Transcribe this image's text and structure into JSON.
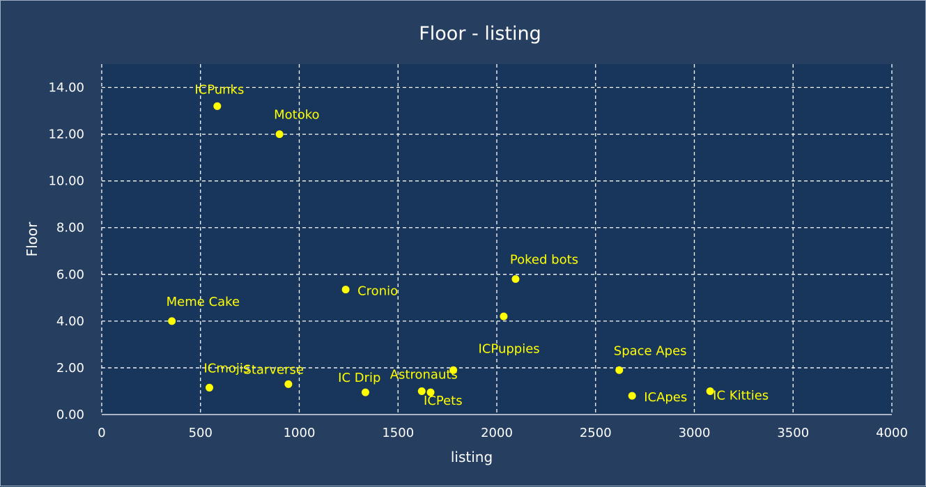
{
  "chart_data": {
    "type": "scatter",
    "title": "Floor - listing",
    "xlabel": "listing",
    "ylabel": "Floor",
    "xlim": [
      0,
      4000
    ],
    "ylim": [
      0,
      15
    ],
    "xticks": [
      0,
      500,
      1000,
      1500,
      2000,
      2500,
      3000,
      3500,
      4000
    ],
    "yticks": [
      0,
      2,
      4,
      6,
      8,
      10,
      12,
      14
    ],
    "ytick_format": "fixed2",
    "grid": true,
    "legend": "none",
    "points": [
      {
        "label": "ICPunks",
        "x": 585,
        "y": 13.2,
        "label_pos": "top"
      },
      {
        "label": "Motoko",
        "x": 900,
        "y": 12.0,
        "label_pos": "top-right"
      },
      {
        "label": "Meme Cake",
        "x": 355,
        "y": 4.0,
        "label_pos": "top-right"
      },
      {
        "label": "Cronio",
        "x": 1235,
        "y": 5.35,
        "label_pos": "right"
      },
      {
        "label": "Poked bots",
        "x": 2095,
        "y": 5.8,
        "label_pos": "top-right"
      },
      {
        "label": "",
        "x": 2035,
        "y": 4.2,
        "label_pos": "none"
      },
      {
        "label": "ICmojis",
        "x": 545,
        "y": 1.15,
        "label_pos": "top-right"
      },
      {
        "label": "Starverse",
        "x": 945,
        "y": 1.3,
        "label_pos": "top-left"
      },
      {
        "label": "IC Drip",
        "x": 1335,
        "y": 0.95,
        "label_pos": "top-left"
      },
      {
        "label": "Astronauts",
        "x": 1620,
        "y": 1.0,
        "label_pos": "top"
      },
      {
        "label": "ICPets",
        "x": 1665,
        "y": 0.95,
        "label_pos": "bottom-right"
      },
      {
        "label": "ICPuppies",
        "x": 1780,
        "y": 1.9,
        "label_pos": "top-left-far"
      },
      {
        "label": "Space Apes",
        "x": 2620,
        "y": 1.9,
        "label_pos": "top-right"
      },
      {
        "label": "ICApes",
        "x": 2685,
        "y": 0.8,
        "label_pos": "right"
      },
      {
        "label": "IC Kitties",
        "x": 3080,
        "y": 1.0,
        "label_pos": "right-low"
      }
    ]
  },
  "colors": {
    "background": "#263f60",
    "plot_area": "#18365c",
    "grid": "#ffffff",
    "text": "#ffffff",
    "point": "#ffff00",
    "point_label": "#ffff00"
  }
}
